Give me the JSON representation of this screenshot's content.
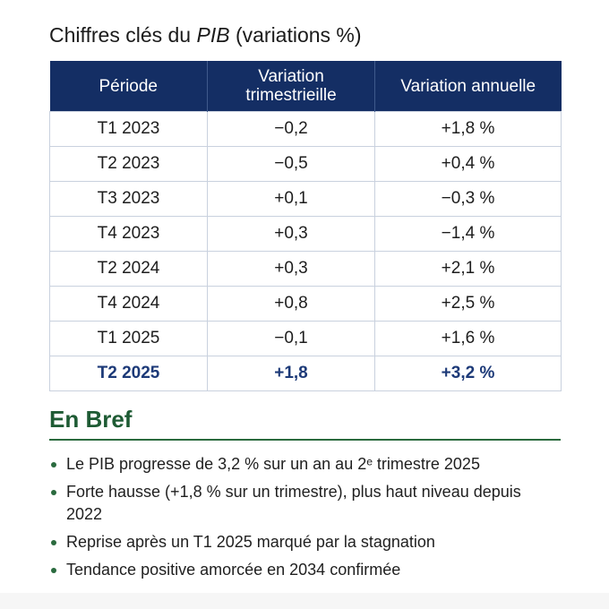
{
  "title": {
    "prefix": "Chiffres clés du ",
    "italic": "PIB",
    "suffix": " (variations %)"
  },
  "table": {
    "headers": {
      "periode": "Période",
      "trim_line1": "Variation",
      "trim_line2": "trimestrieille",
      "annuelle": "Variation annuelle"
    },
    "rows": [
      {
        "periode": "T1 2023",
        "trim": "−0,2",
        "annuelle": "+1,8 %"
      },
      {
        "periode": "T2 2023",
        "trim": "−0,5",
        "annuelle": "+0,4 %"
      },
      {
        "periode": "T3 2023",
        "trim": "+0,1",
        "annuelle": "−0,3 %"
      },
      {
        "periode": "T4 2023",
        "trim": "+0,3",
        "annuelle": "−1,4 %"
      },
      {
        "periode": "T2 2024",
        "trim": "+0,3",
        "annuelle": "+2,1 %"
      },
      {
        "periode": "T4 2024",
        "trim": "+0,8",
        "annuelle": "+2,5 %"
      },
      {
        "periode": "T1 2025",
        "trim": "−0,1",
        "annuelle": "+1,6 %"
      },
      {
        "periode": "T2 2025",
        "trim": "+1,8",
        "annuelle": "+3,2 %"
      }
    ]
  },
  "en_bref": {
    "title": "En Bref",
    "items": [
      "Le PIB progresse de 3,2 % sur un an au 2ᵉ trimestre 2025",
      "Forte hausse (+1,8 % sur un trimestre), plus haut niveau depuis 2022",
      "Reprise après un T1 2025 marqué par la stagnation",
      "Tendance positive amorcée en 2034 confirmée"
    ]
  },
  "colors": {
    "header_bg": "#142e64",
    "highlight_row": "#1d3a78",
    "section_green": "#1e5b34"
  }
}
